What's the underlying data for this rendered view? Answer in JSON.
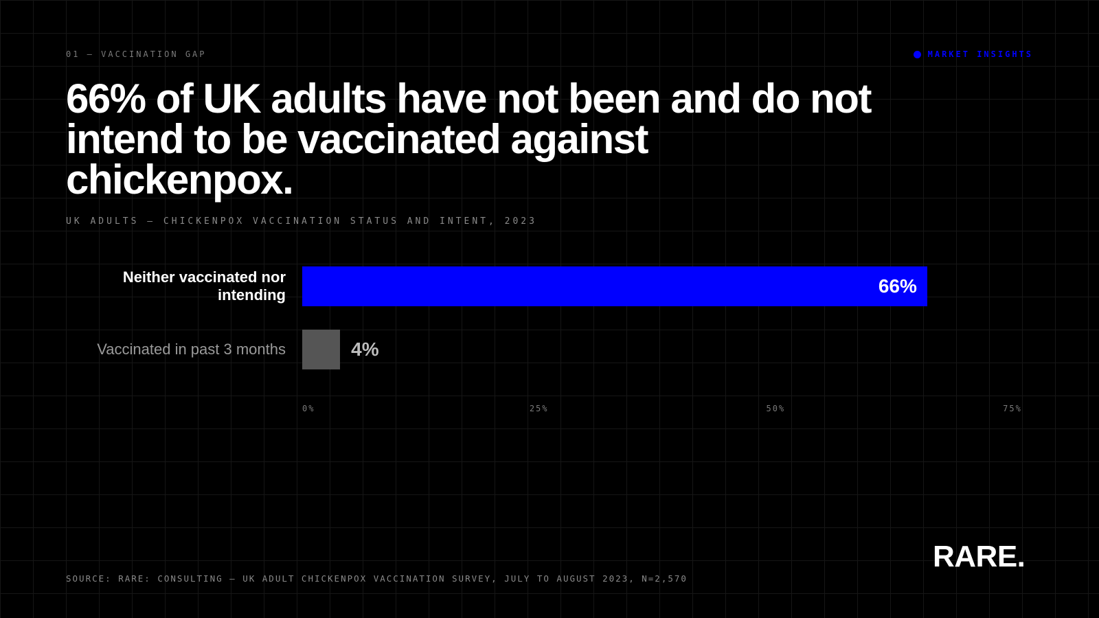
{
  "header": {
    "eyebrow": "01 — VACCINATION GAP",
    "tag": "MARKET INSIGHTS"
  },
  "chart_data": {
    "type": "bar",
    "orientation": "horizontal",
    "title": "66% of UK adults have not been and do not intend to be vaccinated against chickenpox.",
    "subtitle": "UK ADULTS — CHICKENPOX VACCINATION STATUS AND INTENT, 2023",
    "categories": [
      "Neither vaccinated nor intending",
      "Vaccinated in past 3 months"
    ],
    "values": [
      66,
      4
    ],
    "value_labels": [
      "66%",
      "4%"
    ],
    "colors": [
      "#0000ff",
      "#555555"
    ],
    "xlim": [
      0,
      75
    ],
    "xticks": [
      {
        "value": 0,
        "label": "0%"
      },
      {
        "value": 25,
        "label": "25%"
      },
      {
        "value": 50,
        "label": "50%"
      },
      {
        "value": 75,
        "label": "75%"
      }
    ]
  },
  "footer": {
    "source": "SOURCE: RARE: CONSULTING — UK ADULT CHICKENPOX VACCINATION SURVEY, JULY TO AUGUST 2023, N=2,570",
    "logo": "RARE."
  }
}
